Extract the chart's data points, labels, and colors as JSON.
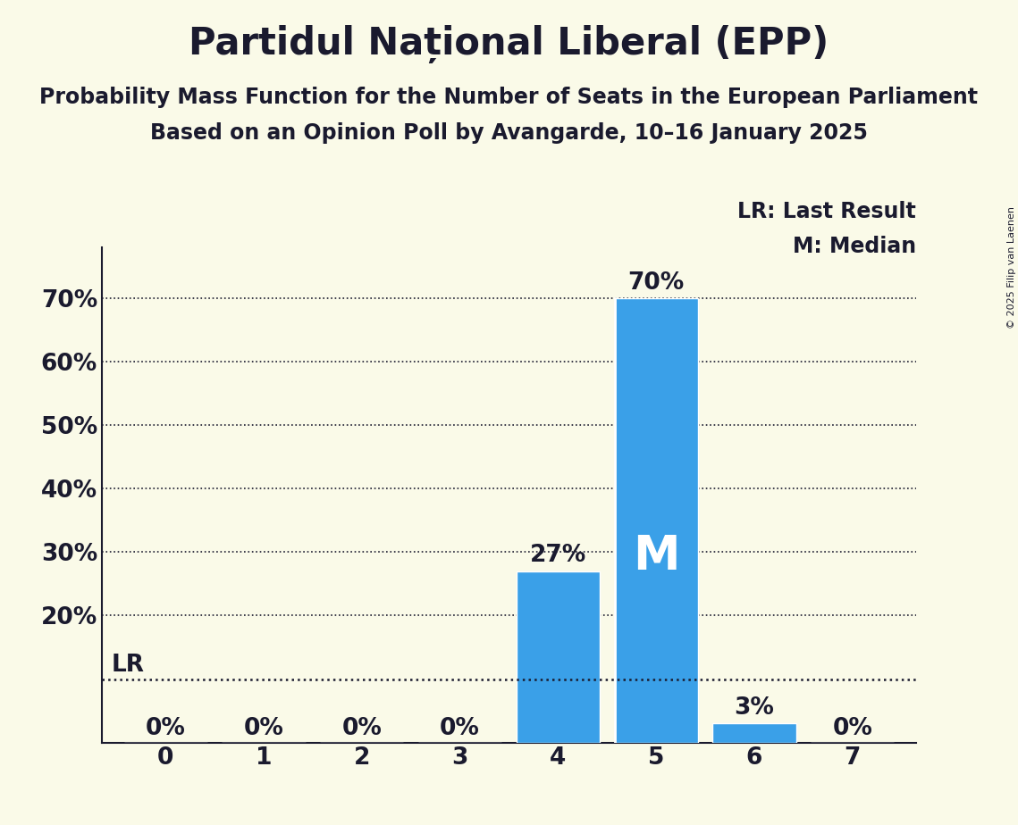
{
  "title": "Partidul Național Liberal (EPP)",
  "subtitle1": "Probability Mass Function for the Number of Seats in the European Parliament",
  "subtitle2": "Based on an Opinion Poll by Avangarde, 10–16 January 2025",
  "copyright": "© 2025 Filip van Laenen",
  "categories": [
    0,
    1,
    2,
    3,
    4,
    5,
    6,
    7
  ],
  "values": [
    0.0,
    0.0,
    0.0,
    0.0,
    0.27,
    0.7,
    0.03,
    0.0
  ],
  "bar_color": "#3aa0e8",
  "bar_labels": [
    "0%",
    "0%",
    "0%",
    "0%",
    "27%",
    "70%",
    "3%",
    "0%"
  ],
  "median_seat": 5,
  "median_label": "M",
  "lr_value": 0.1,
  "lr_label": "LR",
  "legend_lr": "LR: Last Result",
  "legend_m": "M: Median",
  "background_color": "#fafae8",
  "bar_edge_color": "white",
  "yticks": [
    0.2,
    0.3,
    0.4,
    0.5,
    0.6,
    0.7
  ],
  "ytick_labels": [
    "20%",
    "30%",
    "40%",
    "50%",
    "60%",
    "70%"
  ],
  "ylim": [
    0,
    0.78
  ],
  "title_fontsize": 30,
  "subtitle_fontsize": 17,
  "label_fontsize": 17,
  "tick_fontsize": 19,
  "text_color": "#1a1a2e"
}
